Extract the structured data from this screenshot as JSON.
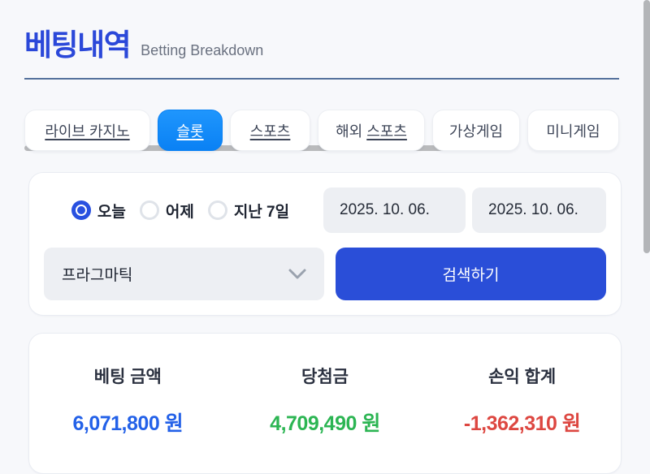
{
  "header": {
    "title": "베팅내역",
    "subtitle": "Betting Breakdown"
  },
  "tabs": [
    {
      "id": "live-casino",
      "label": "라이브 카지노",
      "active": false,
      "underline": true
    },
    {
      "id": "slots",
      "label": "슬롯",
      "active": true,
      "underline": true
    },
    {
      "id": "sports",
      "label": "스포츠",
      "active": false,
      "underline": true
    },
    {
      "id": "overseas-sports",
      "label": "해외 스포츠",
      "active": false,
      "underline": "스포츠"
    },
    {
      "id": "virtual-games",
      "label": "가상게임",
      "active": false,
      "underline": false
    },
    {
      "id": "mini-games",
      "label": "미니게임",
      "active": false,
      "underline": false
    }
  ],
  "filters": {
    "period_options": [
      {
        "id": "today",
        "label": "오늘",
        "selected": true
      },
      {
        "id": "yesterday",
        "label": "어제",
        "selected": false
      },
      {
        "id": "last-7-days",
        "label": "지난 7일",
        "selected": false
      }
    ],
    "date_from": "2025. 10. 06.",
    "date_to": "2025. 10. 06.",
    "provider_select": {
      "value": "프라그마틱",
      "icon": "chevron-down-icon"
    },
    "search_button_label": "검색하기"
  },
  "summary": {
    "items": [
      {
        "id": "bet-amount",
        "label": "베팅 금액",
        "value": "6,071,800 원",
        "color": "#2361e8"
      },
      {
        "id": "winnings",
        "label": "당첨금",
        "value": "4,709,490 원",
        "color": "#2cb553"
      },
      {
        "id": "profit-total",
        "label": "손익 합계",
        "value": "-1,362,310 원",
        "color": "#dd4741"
      }
    ]
  },
  "colors": {
    "title_blue": "#2b48d9",
    "active_tab_blue": "#1389f8",
    "button_blue": "#2a4ed8",
    "radio_blue": "#2850e0",
    "divider_blue": "#54719c",
    "page_background": "#f7f8fb"
  }
}
